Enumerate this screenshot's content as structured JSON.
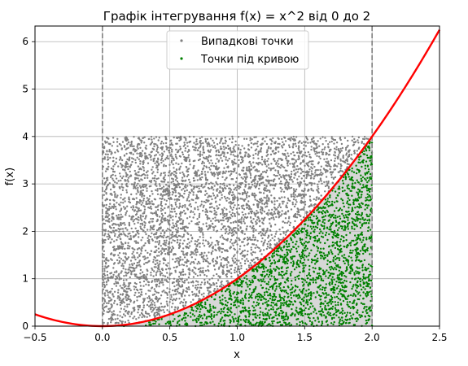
{
  "chart_data": {
    "type": "scatter",
    "title": "Графік інтегрування f(x) = x^2 від 0 до 2",
    "xlabel": "x",
    "ylabel": "f(x)",
    "xlim": [
      -0.5,
      2.5
    ],
    "ylim": [
      0,
      6.33
    ],
    "xticks": [
      -0.5,
      0.0,
      0.5,
      1.0,
      1.5,
      2.0,
      2.5
    ],
    "xtick_labels": [
      "−0.5",
      "0.0",
      "0.5",
      "1.0",
      "1.5",
      "2.0",
      "2.5"
    ],
    "yticks": [
      0,
      1,
      2,
      3,
      4,
      5,
      6
    ],
    "ytick_labels": [
      "0",
      "1",
      "2",
      "3",
      "4",
      "5",
      "6"
    ],
    "grid": true,
    "legend_position": "top-center",
    "series": [
      {
        "name": "Випадкові точки",
        "kind": "scatter",
        "color": "#808080",
        "distribution": "uniform",
        "x_range": [
          0,
          2
        ],
        "y_range": [
          0,
          4
        ]
      },
      {
        "name": "Точки під кривою",
        "kind": "scatter",
        "color": "#008000",
        "condition": "y <= x^2",
        "x_range": [
          0,
          2
        ],
        "y_range": [
          0,
          4
        ]
      }
    ],
    "curve": {
      "function": "x^2",
      "x_range": [
        -0.5,
        2.5
      ],
      "color": "#ff0000"
    },
    "vertical_lines": [
      {
        "x": 0,
        "style": "dashed",
        "color": "#808080"
      },
      {
        "x": 2,
        "style": "dashed",
        "color": "#808080"
      }
    ],
    "fill_under_curve": {
      "x_range": [
        0,
        2
      ],
      "color": "#d3d3d3"
    }
  }
}
